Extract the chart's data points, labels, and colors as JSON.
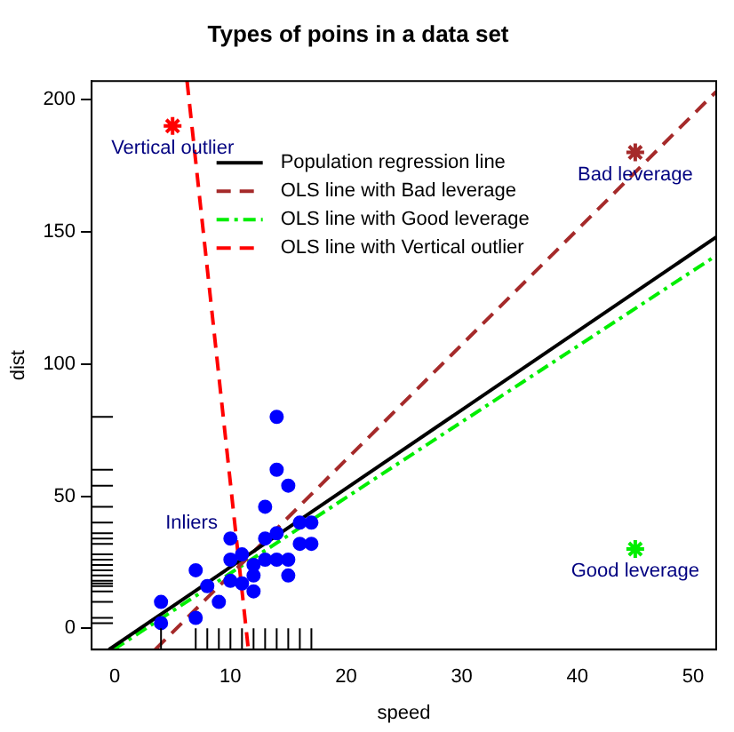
{
  "chart_data": {
    "type": "scatter",
    "title": "Types of poins in a data set",
    "xlabel": "speed",
    "ylabel": "dist",
    "xlim": [
      -2,
      52
    ],
    "ylim": [
      -8,
      207
    ],
    "xticks": [
      0,
      10,
      20,
      30,
      40,
      50
    ],
    "yticks": [
      0,
      50,
      100,
      150,
      200
    ],
    "grid": false,
    "legend": "top",
    "series": [
      {
        "color": "#0000ff",
        "marker": "circle",
        "x": [
          4,
          4,
          7,
          7,
          8,
          9,
          10,
          10,
          10,
          11,
          11,
          12,
          12,
          12,
          13,
          13,
          13,
          14,
          14,
          14,
          14,
          15,
          15,
          15,
          16,
          16,
          17,
          17
        ],
        "values": [
          10,
          2,
          22,
          4,
          16,
          10,
          34,
          26,
          18,
          28,
          17,
          24,
          20,
          14,
          46,
          34,
          26,
          80,
          60,
          36,
          26,
          54,
          26,
          20,
          40,
          32,
          40,
          32
        ]
      },
      {
        "color": "#ff0000",
        "marker": "cross",
        "x": [
          5
        ],
        "values": [
          190
        ]
      },
      {
        "color": "#a52a2a",
        "marker": "cross",
        "x": [
          45
        ],
        "values": [
          180
        ]
      },
      {
        "color": "#00ee00",
        "marker": "cross",
        "x": [
          45
        ],
        "values": [
          30
        ]
      },
      {
        "type": "line",
        "name": "Population regression line",
        "color": "#000000",
        "line_style": "solid",
        "marker": "none",
        "x": [
          -0.5,
          52
        ],
        "values": [
          -8,
          148
        ]
      },
      {
        "type": "line",
        "name": "OLS line with Bad leverage",
        "color": "#a52a2a",
        "line_style": "dashed",
        "marker": "none",
        "x": [
          3.5,
          52
        ],
        "values": [
          -8,
          203
        ]
      },
      {
        "type": "line",
        "name": "OLS line with Good leverage",
        "color": "#00ee00",
        "line_style": "dotted",
        "marker": "none",
        "x": [
          -0.1,
          52
        ],
        "values": [
          -8,
          141
        ]
      },
      {
        "type": "line",
        "name": "OLS line with Vertical outlier",
        "color": "#ff0000",
        "line_style": "dashed",
        "marker": "none",
        "x": [
          6.25,
          11.55
        ],
        "values": [
          207,
          -8
        ]
      }
    ],
    "annotations": [
      "Vertical outlier",
      "Bad leverage",
      "Good leverage",
      "Inliers"
    ]
  }
}
